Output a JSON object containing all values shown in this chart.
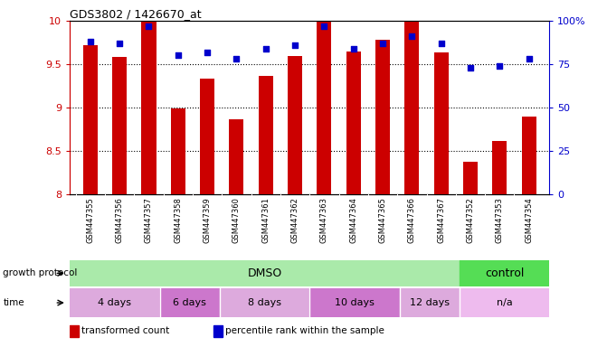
{
  "title": "GDS3802 / 1426670_at",
  "samples": [
    "GSM447355",
    "GSM447356",
    "GSM447357",
    "GSM447358",
    "GSM447359",
    "GSM447360",
    "GSM447361",
    "GSM447362",
    "GSM447363",
    "GSM447364",
    "GSM447365",
    "GSM447366",
    "GSM447367",
    "GSM447352",
    "GSM447353",
    "GSM447354"
  ],
  "transformed_counts": [
    9.72,
    9.58,
    9.99,
    8.99,
    9.33,
    8.87,
    9.37,
    9.59,
    9.99,
    9.65,
    9.78,
    9.99,
    9.64,
    8.38,
    8.62,
    8.9
  ],
  "percentile_ranks": [
    88,
    87,
    97,
    80,
    82,
    78,
    84,
    86,
    97,
    84,
    87,
    91,
    87,
    73,
    74,
    78
  ],
  "ylim_left": [
    8.0,
    10.0
  ],
  "ylim_right": [
    0,
    100
  ],
  "yticks_left": [
    8.0,
    8.5,
    9.0,
    9.5,
    10.0
  ],
  "yticks_right": [
    0,
    25,
    50,
    75,
    100
  ],
  "bar_color": "#cc0000",
  "dot_color": "#0000cc",
  "dmso_color": "#aaeaaa",
  "control_color": "#55dd55",
  "time_colors": [
    "#ddaadd",
    "#cc77cc",
    "#ddaadd",
    "#cc77cc",
    "#ddaadd",
    "#eebbee"
  ],
  "time_groups": [
    {
      "label": "4 days",
      "start": 0,
      "end": 3
    },
    {
      "label": "6 days",
      "start": 3,
      "end": 5
    },
    {
      "label": "8 days",
      "start": 5,
      "end": 8
    },
    {
      "label": "10 days",
      "start": 8,
      "end": 11
    },
    {
      "label": "12 days",
      "start": 11,
      "end": 13
    },
    {
      "label": "n/a",
      "start": 13,
      "end": 16
    }
  ],
  "legend_bar_label": "transformed count",
  "legend_dot_label": "percentile rank within the sample",
  "xlabel_growth": "growth protocol",
  "xlabel_time": "time",
  "tick_color_left": "#cc0000",
  "tick_color_right": "#0000cc",
  "xtick_bg": "#cccccc",
  "bar_width": 0.5
}
